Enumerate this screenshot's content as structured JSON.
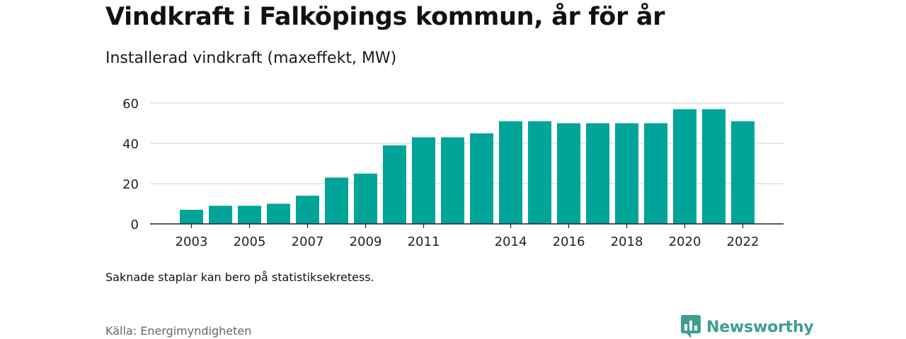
{
  "header": {
    "title": "Vindkraft i Falköpings kommun, år för år",
    "subtitle": "Installerad vindkraft (maxeffekt, MW)"
  },
  "footer": {
    "note": "Saknade staplar kan bero på statistiksekretess.",
    "source": "Källa: Energimyndigheten",
    "brand": "Newsworthy"
  },
  "colors": {
    "bar": "#00a499",
    "grid": "#d9d9d9",
    "axis": "#222222",
    "brand": "#3f9e94"
  },
  "chart_data": {
    "type": "bar",
    "title": "Vindkraft i Falköpings kommun, år för år",
    "subtitle": "Installerad vindkraft (maxeffekt, MW)",
    "categories": [
      "2003",
      "2004",
      "2005",
      "2006",
      "2007",
      "2008",
      "2009",
      "2010",
      "2011",
      "2012",
      "2013",
      "2014",
      "2015",
      "2016",
      "2017",
      "2018",
      "2019",
      "2020",
      "2021",
      "2022"
    ],
    "values": [
      7,
      9,
      9,
      10,
      14,
      23,
      25,
      39,
      43,
      43,
      45,
      51,
      51,
      50,
      50,
      50,
      50,
      57,
      57,
      51
    ],
    "x_tick_labels": [
      "2003",
      "2005",
      "2007",
      "2009",
      "2011",
      "2014",
      "2016",
      "2018",
      "2020",
      "2022"
    ],
    "y_ticks": [
      0,
      20,
      40,
      60
    ],
    "ylim": [
      0,
      60
    ],
    "xlabel": "",
    "ylabel": "",
    "grid": true
  }
}
